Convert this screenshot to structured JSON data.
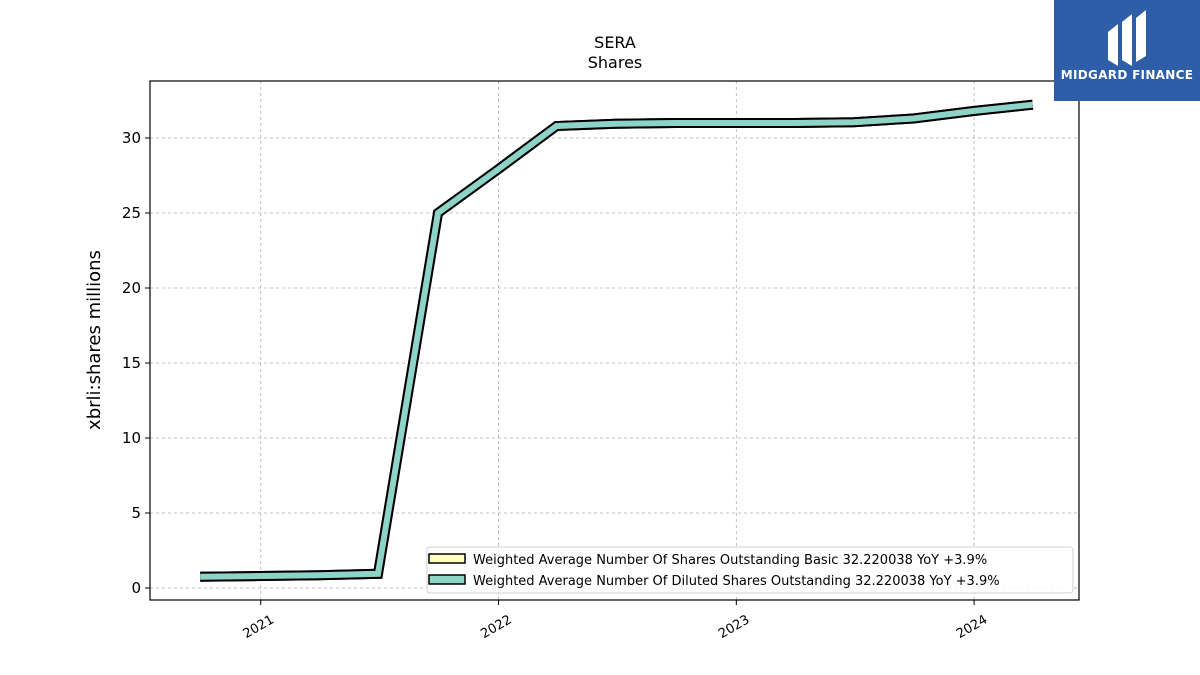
{
  "chart_data": {
    "type": "line",
    "title": "SERA",
    "subtitle": "Shares",
    "ylabel": "xbrli:shares millions",
    "xlabel": "",
    "x": [
      "2020-09-30",
      "2020-12-31",
      "2021-03-31",
      "2021-06-30",
      "2021-09-30",
      "2021-12-31",
      "2022-03-31",
      "2022-06-30",
      "2022-09-30",
      "2022-12-31",
      "2023-03-31",
      "2023-06-30",
      "2023-09-30",
      "2023-12-31",
      "2024-03-31"
    ],
    "x_ticks": [
      "2021",
      "2022",
      "2023",
      "2024"
    ],
    "y_ticks": [
      "0",
      "5",
      "10",
      "15",
      "20",
      "25",
      "30"
    ],
    "ylim": [
      -0.8,
      33.8
    ],
    "grid": true,
    "legend_position": "lower right",
    "series": [
      {
        "name": "Weighted Average Number Of Shares Outstanding Basic  32.220038 YoY +3.9%",
        "color": "#ffffbf",
        "values": [
          0.75,
          0.8,
          0.85,
          0.95,
          25.0,
          27.9,
          30.8,
          30.95,
          31.0,
          31.0,
          31.0,
          31.05,
          31.3,
          31.8,
          32.22
        ]
      },
      {
        "name": "Weighted Average Number Of Diluted Shares Outstanding  32.220038 YoY +3.9%",
        "color": "#8dd3c7",
        "values": [
          0.75,
          0.8,
          0.85,
          0.95,
          25.0,
          27.9,
          30.8,
          30.95,
          31.0,
          31.0,
          31.0,
          31.05,
          31.3,
          31.8,
          32.22
        ]
      }
    ]
  },
  "logo": {
    "text": "MIDGARD FINANCE",
    "color": "#2f5ea8"
  }
}
